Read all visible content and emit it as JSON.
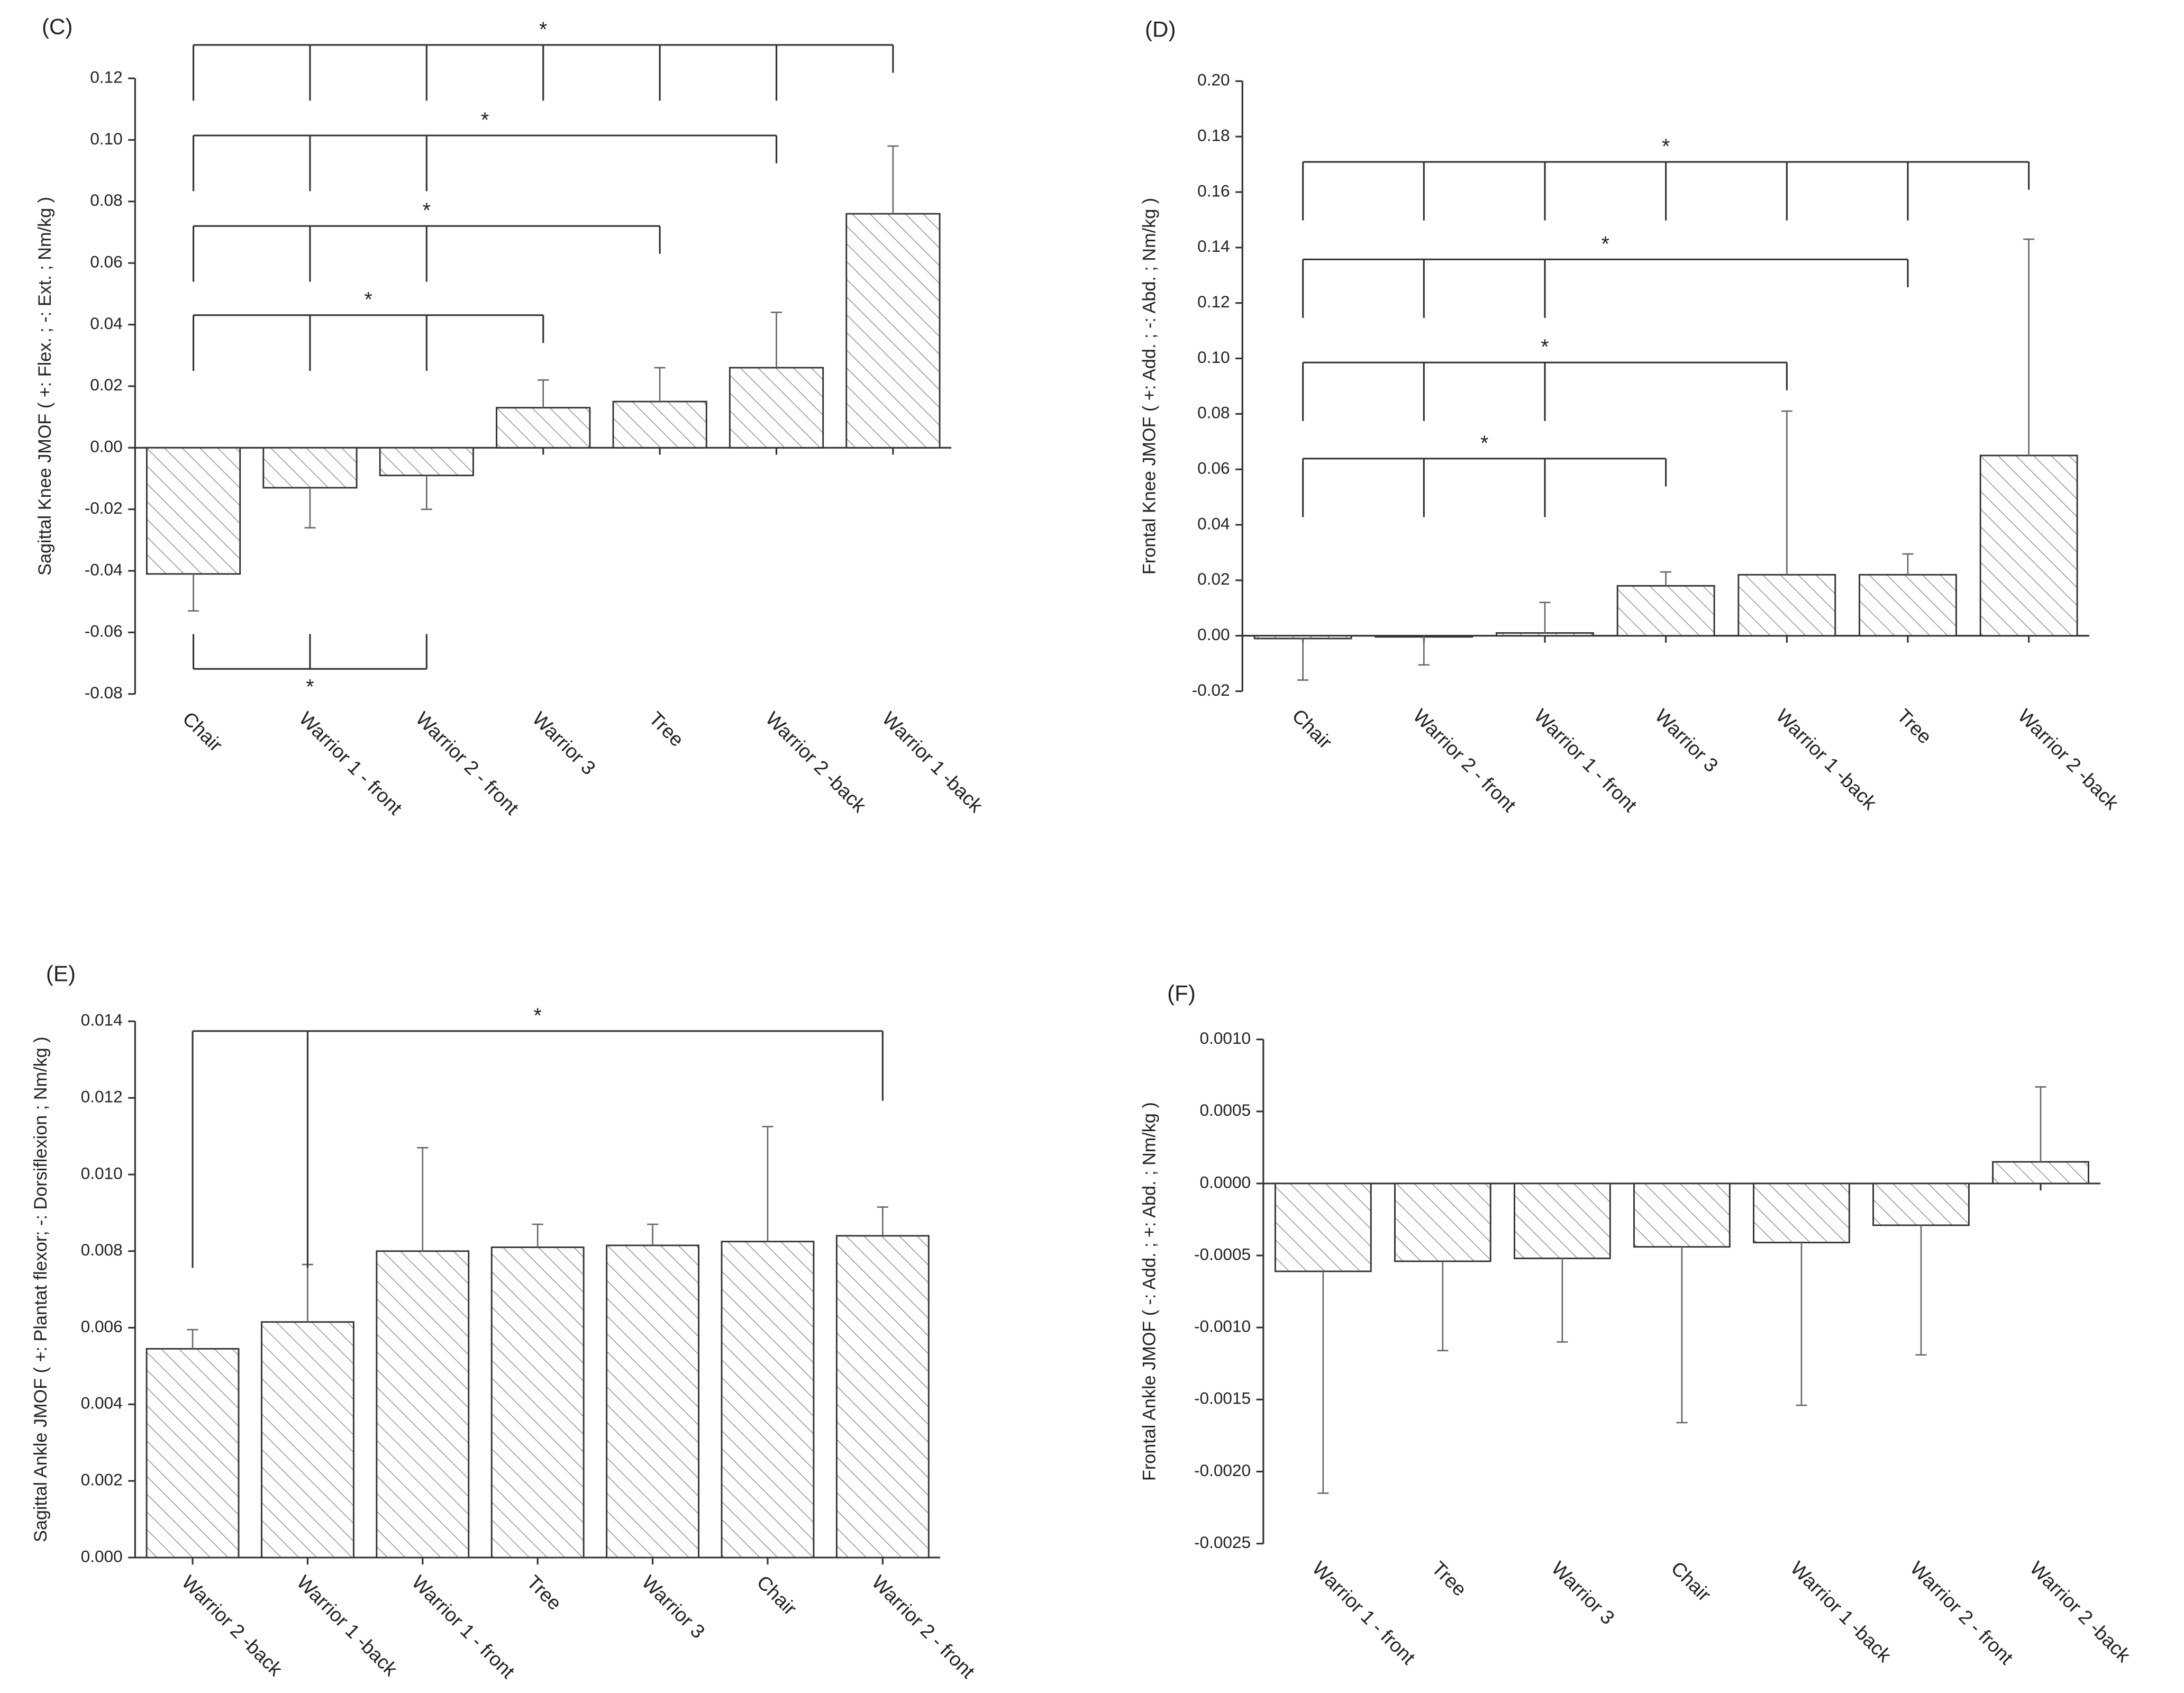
{
  "chart_data": [
    {
      "type": "bar",
      "title": "(C)",
      "y_label": "Sagittal Knee JMOF ( +: Flex. ; -: Ext. ; Nm/kg )",
      "categories": [
        "Chair",
        "Warrior 1 - front",
        "Warrior 2 - front",
        "Warrior 3",
        "Tree",
        "Warrior 2 -back",
        "Warrior 1 -back"
      ],
      "values": [
        -0.041,
        -0.013,
        -0.009,
        0.013,
        0.015,
        0.026,
        0.076
      ],
      "errors": [
        0.012,
        0.013,
        0.011,
        0.009,
        0.011,
        0.018,
        0.022
      ],
      "ylim": [
        -0.08,
        0.12
      ],
      "yticks": [
        -0.08,
        -0.06,
        -0.04,
        -0.02,
        {
          "value": 0,
          "label": "0.00"
        },
        0.02,
        0.04,
        0.06,
        0.08,
        {
          "value": 0.1,
          "label": "0.10"
        },
        0.12
      ],
      "brackets": [
        {
          "label": "*",
          "from": [
            "Chair",
            "Warrior 1 - front",
            "Warrior 2 - front",
            "Warrior 3",
            "Tree",
            "Warrior 2 -back"
          ],
          "to": "Warrior 1 -back"
        },
        {
          "label": "*",
          "from": [
            "Chair",
            "Warrior 1 - front",
            "Warrior 2 - front"
          ],
          "to": "Warrior 2 -back"
        },
        {
          "label": "*",
          "from": [
            "Chair",
            "Warrior 1 - front",
            "Warrior 2 - front"
          ],
          "to": "Tree"
        },
        {
          "label": "*",
          "from": [
            "Chair",
            "Warrior 1 - front",
            "Warrior 2 - front"
          ],
          "to": "Warrior 3"
        }
      ],
      "brackets_below": [
        {
          "label": "*",
          "from": [
            "Chair",
            "Warrior 1 - front"
          ],
          "to": "Warrior 2 - front"
        }
      ]
    },
    {
      "type": "bar",
      "title": "(D)",
      "y_label": "Frontal Knee JMOF ( +: Add. ; -: Abd. ; Nm/kg )",
      "categories": [
        "Chair",
        "Warrior 2 - front",
        "Warrior 1 - front",
        "Warrior 3",
        "Warrior 1 -back",
        "Tree",
        "Warrior 2 -back"
      ],
      "values": [
        -0.001,
        0,
        0.001,
        0.018,
        0.022,
        0.022,
        0.065
      ],
      "errors": [
        0.015,
        0.0105,
        0.011,
        0.005,
        0.059,
        0.0075,
        0.078
      ],
      "ylim": [
        -0.02,
        0.2
      ],
      "yticks": [
        -0.02,
        {
          "value": 0,
          "label": "0.00"
        },
        0.02,
        0.04,
        0.06,
        0.08,
        {
          "value": 0.1,
          "label": "0.10"
        },
        0.12,
        0.14,
        0.16,
        0.18,
        {
          "value": 0.2,
          "label": "0.20"
        }
      ],
      "brackets": [
        {
          "label": "*",
          "from": [
            "Chair",
            "Warrior 2 - front",
            "Warrior 1 - front",
            "Warrior 3",
            "Warrior 1 -back",
            "Tree"
          ],
          "to": "Warrior 2 -back"
        },
        {
          "label": "*",
          "from": [
            "Chair",
            "Warrior 2 - front",
            "Warrior 1 - front"
          ],
          "to": "Tree"
        },
        {
          "label": "*",
          "from": [
            "Chair",
            "Warrior 2 - front",
            "Warrior 1 - front"
          ],
          "to": "Warrior 1 -back"
        },
        {
          "label": "*",
          "from": [
            "Chair",
            "Warrior 2 - front",
            "Warrior 1 - front"
          ],
          "to": "Warrior 3"
        }
      ]
    },
    {
      "type": "bar",
      "title": "(E)",
      "y_label": "Sagittal Ankle JMOF ( +: Plantat flexor; -: Dorsiflexion ; Nm/kg )",
      "categories": [
        "Warrior 2 -back",
        "Warrior 1 -back",
        "Warrior 1 - front",
        "Tree",
        "Warrior 3",
        "Chair",
        "Warrior 2 - front"
      ],
      "values": [
        0.00545,
        0.00615,
        0.008,
        0.0081,
        0.00815,
        0.00825,
        0.0084
      ],
      "errors": [
        0.0005,
        0.0015,
        0.0027,
        0.0006,
        0.00055,
        0.003,
        0.00075
      ],
      "ylim": [
        0,
        0.014
      ],
      "yticks": [
        {
          "value": 0,
          "label": "0.000"
        },
        0.002,
        0.004,
        0.006,
        0.008,
        {
          "value": 0.01,
          "label": "0.010"
        },
        0.012,
        0.014
      ],
      "brackets": [
        {
          "label": "*",
          "from": [
            "Warrior 2 -back",
            "Warrior 1 -back"
          ],
          "to": "Warrior 2 - front"
        }
      ]
    },
    {
      "type": "bar",
      "title": "(F)",
      "y_label": "Frontal Ankle JMOF ( -: Add. ; +: Abd. ; Nm/kg )",
      "categories": [
        "Warrior 1 - front",
        "Tree",
        "Warrior 3",
        "Chair",
        "Warrior 1 -back",
        "Warrior 2 - front",
        "Warrior 2 -back"
      ],
      "values": [
        -0.00061,
        -0.00054,
        -0.00052,
        -0.00044,
        -0.00041,
        -0.00029,
        0.00015
      ],
      "errors": [
        0.00154,
        0.00062,
        0.00058,
        0.00122,
        0.00113,
        0.0009,
        0.00052
      ],
      "ylim": [
        -0.0025,
        0.001
      ],
      "yticks": [
        -0.0025,
        {
          "value": -0.002,
          "label": "-0.0020"
        },
        -0.0015,
        {
          "value": -0.001,
          "label": "-0.0010"
        },
        -0.0005,
        {
          "value": 0,
          "label": "0.0000"
        },
        0.0005,
        {
          "value": 0.001,
          "label": "0.0010"
        }
      ]
    }
  ]
}
